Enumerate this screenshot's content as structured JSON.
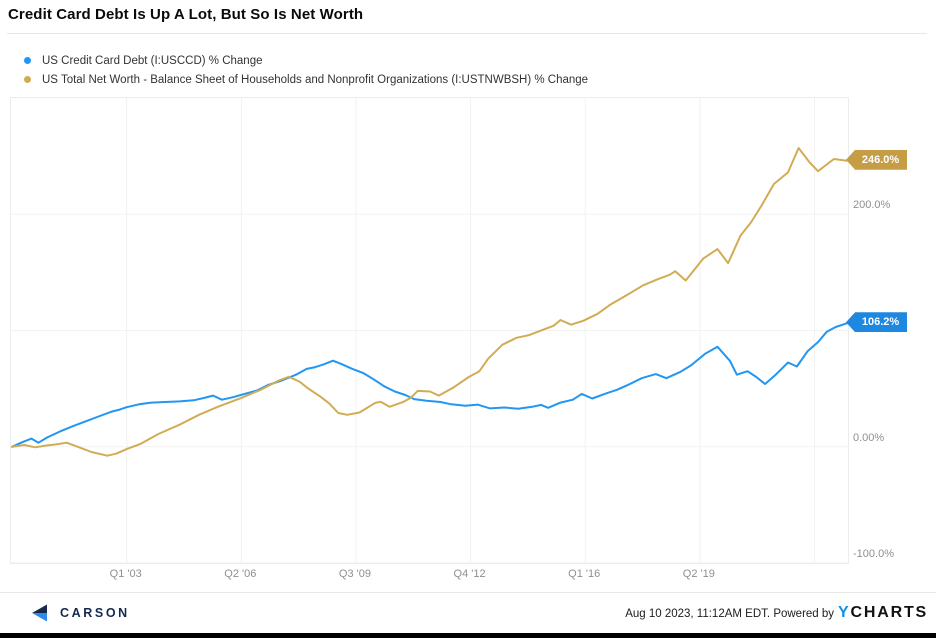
{
  "header": {
    "title": "Credit Card Debt Is Up A Lot, But So Is Net Worth"
  },
  "legend": [
    {
      "label": "US Credit Card Debt (I:USCCD) % Change",
      "color": "#2196f3"
    },
    {
      "label": "US Total Net Worth - Balance Sheet of Households and Nonprofit Organizations (I:USTNWBSH) % Change",
      "color": "#d1ac55"
    }
  ],
  "chart_data": {
    "type": "line",
    "title": "Credit Card Debt Is Up A Lot, But So Is Net Worth",
    "xlabel": "",
    "ylabel": "% Change",
    "grid": true,
    "x_axis": {
      "min": 1999.72,
      "max": 2023.45,
      "ticks": [
        {
          "year": 2003.0,
          "label": "Q1 '03"
        },
        {
          "year": 2006.25,
          "label": "Q2 '06"
        },
        {
          "year": 2009.5,
          "label": "Q3 '09"
        },
        {
          "year": 2012.75,
          "label": "Q4 '12"
        },
        {
          "year": 2016.0,
          "label": "Q1 '16"
        },
        {
          "year": 2019.25,
          "label": "Q2 '19"
        },
        {
          "year": 2022.5,
          "label": ""
        }
      ]
    },
    "y_axis": {
      "min": -100,
      "max": 300,
      "grid_values": [
        200,
        100,
        0,
        -100
      ],
      "ticks": [
        {
          "value": 200,
          "label": "200.0%"
        },
        {
          "value": 0,
          "label": "0.00%"
        },
        {
          "value": -100,
          "label": "-100.0%"
        }
      ]
    },
    "series": [
      {
        "name": "US Credit Card Debt (I:USCCD) % Change",
        "color": "#2196f3",
        "tag_color": "#1e88e0",
        "end_label": "106.2%",
        "end_value": 106.2,
        "points": [
          [
            1999.75,
            0
          ],
          [
            2000.05,
            4
          ],
          [
            2000.3,
            7
          ],
          [
            2000.5,
            3.5
          ],
          [
            2000.75,
            8
          ],
          [
            2001.1,
            13
          ],
          [
            2001.5,
            18
          ],
          [
            2001.85,
            22
          ],
          [
            2002.2,
            26
          ],
          [
            2002.55,
            30
          ],
          [
            2002.8,
            32
          ],
          [
            2003.0,
            34
          ],
          [
            2003.35,
            36.5
          ],
          [
            2003.7,
            38
          ],
          [
            2004.1,
            38.5
          ],
          [
            2004.5,
            39
          ],
          [
            2004.9,
            40
          ],
          [
            2005.2,
            42
          ],
          [
            2005.45,
            44
          ],
          [
            2005.7,
            40.5
          ],
          [
            2006.0,
            42.5
          ],
          [
            2006.3,
            45
          ],
          [
            2006.7,
            48.5
          ],
          [
            2007.0,
            53
          ],
          [
            2007.4,
            57
          ],
          [
            2007.8,
            62
          ],
          [
            2008.1,
            67
          ],
          [
            2008.35,
            68.5
          ],
          [
            2008.6,
            71
          ],
          [
            2008.85,
            74
          ],
          [
            2009.1,
            71
          ],
          [
            2009.4,
            67
          ],
          [
            2009.7,
            63.5
          ],
          [
            2010.0,
            58
          ],
          [
            2010.3,
            52
          ],
          [
            2010.6,
            47.5
          ],
          [
            2010.9,
            44.5
          ],
          [
            2011.15,
            41
          ],
          [
            2011.5,
            39.5
          ],
          [
            2011.9,
            38.5
          ],
          [
            2012.2,
            36.5
          ],
          [
            2012.6,
            35.2
          ],
          [
            2012.95,
            36.3
          ],
          [
            2013.3,
            33
          ],
          [
            2013.7,
            33.8
          ],
          [
            2014.1,
            32.7
          ],
          [
            2014.5,
            34.4
          ],
          [
            2014.75,
            36
          ],
          [
            2014.95,
            33.5
          ],
          [
            2015.3,
            38
          ],
          [
            2015.65,
            40.5
          ],
          [
            2015.9,
            45.5
          ],
          [
            2016.2,
            41.5
          ],
          [
            2016.6,
            46
          ],
          [
            2016.9,
            49
          ],
          [
            2017.2,
            53
          ],
          [
            2017.6,
            59
          ],
          [
            2018.0,
            62.5
          ],
          [
            2018.3,
            59
          ],
          [
            2018.7,
            64.5
          ],
          [
            2019.0,
            70
          ],
          [
            2019.4,
            80
          ],
          [
            2019.75,
            86
          ],
          [
            2020.1,
            74
          ],
          [
            2020.3,
            62
          ],
          [
            2020.6,
            65
          ],
          [
            2020.85,
            60
          ],
          [
            2021.1,
            54
          ],
          [
            2021.4,
            62
          ],
          [
            2021.75,
            72.5
          ],
          [
            2022.0,
            69
          ],
          [
            2022.3,
            82
          ],
          [
            2022.6,
            90
          ],
          [
            2022.85,
            99
          ],
          [
            2023.1,
            103
          ],
          [
            2023.42,
            106.2
          ]
        ]
      },
      {
        "name": "US Total Net Worth - Balance Sheet of Households and Nonprofit Organizations (I:USTNWBSH) % Change",
        "color": "#d1ac55",
        "tag_color": "#c49d45",
        "end_label": "246.0%",
        "end_value": 246.0,
        "points": [
          [
            1999.75,
            0
          ],
          [
            2000.1,
            1.5
          ],
          [
            2000.4,
            -0.5
          ],
          [
            2000.7,
            1
          ],
          [
            2001.0,
            2
          ],
          [
            2001.3,
            3.5
          ],
          [
            2001.7,
            -1
          ],
          [
            2002.0,
            -4.5
          ],
          [
            2002.45,
            -7.7
          ],
          [
            2002.7,
            -6
          ],
          [
            2003.0,
            -2
          ],
          [
            2003.4,
            2.5
          ],
          [
            2003.9,
            11
          ],
          [
            2004.5,
            19
          ],
          [
            2005.05,
            27.5
          ],
          [
            2005.6,
            34.5
          ],
          [
            2006.25,
            42
          ],
          [
            2006.8,
            49
          ],
          [
            2007.3,
            56.8
          ],
          [
            2007.6,
            60.2
          ],
          [
            2007.9,
            56
          ],
          [
            2008.15,
            50
          ],
          [
            2008.5,
            43
          ],
          [
            2008.75,
            37
          ],
          [
            2009.0,
            29
          ],
          [
            2009.25,
            27.5
          ],
          [
            2009.6,
            29.5
          ],
          [
            2010.05,
            37.8
          ],
          [
            2010.2,
            38.7
          ],
          [
            2010.45,
            34.4
          ],
          [
            2010.85,
            38.7
          ],
          [
            2011.05,
            42
          ],
          [
            2011.25,
            48
          ],
          [
            2011.6,
            47.5
          ],
          [
            2011.85,
            44
          ],
          [
            2012.25,
            50.7
          ],
          [
            2012.7,
            60
          ],
          [
            2013.0,
            65
          ],
          [
            2013.25,
            75.7
          ],
          [
            2013.65,
            87.7
          ],
          [
            2014.05,
            93.7
          ],
          [
            2014.4,
            96
          ],
          [
            2014.8,
            100.6
          ],
          [
            2015.1,
            104
          ],
          [
            2015.3,
            109
          ],
          [
            2015.6,
            105
          ],
          [
            2015.95,
            108.4
          ],
          [
            2016.35,
            114.4
          ],
          [
            2016.7,
            122
          ],
          [
            2017.1,
            129
          ],
          [
            2017.65,
            139
          ],
          [
            2018.05,
            144
          ],
          [
            2018.4,
            148
          ],
          [
            2018.55,
            151
          ],
          [
            2018.85,
            143
          ],
          [
            2019.35,
            162
          ],
          [
            2019.75,
            170
          ],
          [
            2020.05,
            158
          ],
          [
            2020.4,
            181.5
          ],
          [
            2020.7,
            193
          ],
          [
            2021.0,
            207.5
          ],
          [
            2021.35,
            226
          ],
          [
            2021.75,
            236
          ],
          [
            2022.05,
            257
          ],
          [
            2022.35,
            245
          ],
          [
            2022.6,
            237
          ],
          [
            2023.05,
            247.5
          ],
          [
            2023.42,
            246
          ]
        ]
      }
    ],
    "grid_color": "#f2f2f2",
    "plot_border_color": "#ececec"
  },
  "footer": {
    "brand_left": "CARSON",
    "timestamp": "Aug 10 2023, 11:12AM EDT.",
    "powered_by": "Powered by",
    "brand_y": "Y",
    "brand_charts": "CHARTS"
  }
}
